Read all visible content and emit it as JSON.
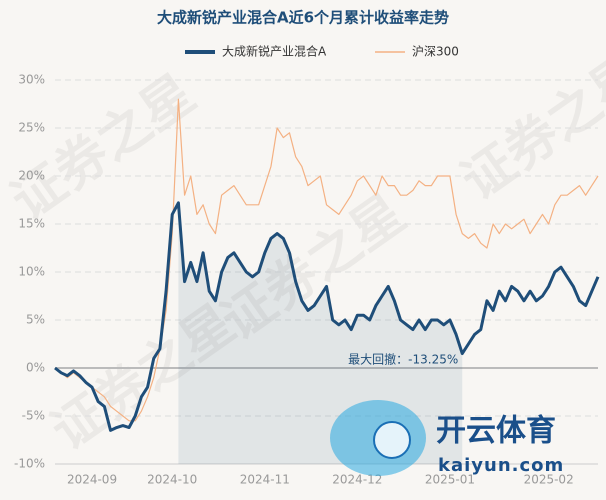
{
  "chart_data": {
    "type": "line",
    "title": "大成新锐产业混合A近6个月累计收益率走势",
    "categories": [
      null,
      null,
      null,
      null,
      null,
      null,
      "2024-09",
      null,
      null,
      null,
      null,
      null,
      null,
      null,
      null,
      null,
      null,
      null,
      null,
      "2024-10",
      null,
      null,
      null,
      null,
      null,
      null,
      null,
      null,
      null,
      null,
      null,
      null,
      null,
      null,
      "2024-11",
      null,
      null,
      null,
      null,
      null,
      null,
      null,
      null,
      null,
      null,
      null,
      null,
      null,
      null,
      "2024-12",
      null,
      null,
      null,
      null,
      null,
      null,
      null,
      null,
      null,
      null,
      null,
      null,
      null,
      null,
      "2025-01",
      null,
      null,
      null,
      null,
      null,
      null,
      null,
      null,
      null,
      null,
      null,
      null,
      null,
      null,
      null,
      "2025-02",
      null,
      null,
      null,
      null,
      null,
      null,
      null,
      null
    ],
    "series": [
      {
        "name": "大成新锐产业混合A",
        "color": "#1f4e79",
        "values": [
          0,
          -0.5,
          -0.8,
          -0.3,
          -0.8,
          -1.5,
          -2,
          -3.5,
          -4,
          -6.5,
          -6.2,
          -6,
          -6.2,
          -5,
          -3,
          -2,
          1,
          2,
          8,
          16,
          17.2,
          9,
          11,
          9,
          12,
          8,
          7,
          10,
          11.5,
          12,
          11,
          10,
          9.5,
          10,
          12,
          13.5,
          14,
          13.5,
          12,
          9,
          7,
          6,
          6.5,
          7.5,
          8.5,
          5,
          4.5,
          5,
          4,
          5.5,
          5.5,
          5,
          6.5,
          7.5,
          8.5,
          7,
          5,
          4.5,
          4,
          5,
          4,
          5,
          5,
          4.5,
          5,
          3.5,
          1.5,
          2.5,
          3.5,
          4,
          7,
          6,
          8,
          7,
          8.5,
          8,
          7,
          8,
          7,
          7.5,
          8.5,
          10,
          10.5,
          9.5,
          8.5,
          7,
          6.5,
          8,
          9.5
        ]
      },
      {
        "name": "沪深300",
        "color": "#f4b183",
        "values": [
          0,
          -0.5,
          -1,
          -0.5,
          -1,
          -1.5,
          -2,
          -2.5,
          -3,
          -4,
          -4.5,
          -5,
          -5.5,
          -5.5,
          -4.5,
          -3,
          -1,
          2,
          6,
          14,
          28,
          18,
          20,
          16,
          17,
          15,
          14,
          18,
          18.5,
          19,
          18,
          17,
          17,
          17,
          19,
          21,
          25,
          24,
          24.5,
          22,
          21,
          19,
          19.5,
          20,
          17,
          16.5,
          16,
          17,
          18,
          19.5,
          20,
          19,
          18,
          20,
          19,
          19,
          18,
          18,
          18.5,
          19.5,
          19,
          19,
          20,
          20,
          20,
          16,
          14,
          13.5,
          14,
          13,
          12.5,
          15,
          14,
          15,
          14.5,
          15,
          15.5,
          14,
          15,
          16,
          15,
          17,
          18,
          18,
          18.5,
          19,
          18,
          19,
          20
        ]
      }
    ],
    "ylim": [
      -10,
      30
    ],
    "yticks": [
      {
        "value": -10,
        "label": "-10%"
      },
      {
        "value": -5,
        "label": "-5%"
      },
      {
        "value": 0,
        "label": "0%"
      },
      {
        "value": 5,
        "label": "5%"
      },
      {
        "value": 10,
        "label": "10%"
      },
      {
        "value": 15,
        "label": "15%"
      },
      {
        "value": 20,
        "label": "20%"
      },
      {
        "value": 25,
        "label": "25%"
      },
      {
        "value": 30,
        "label": "30%"
      }
    ],
    "grid": true,
    "annotation": "最大回撤：-13.25%",
    "watermark": "证券之星",
    "logo": {
      "name": "开云体育",
      "url": "kaiyun.com"
    }
  }
}
